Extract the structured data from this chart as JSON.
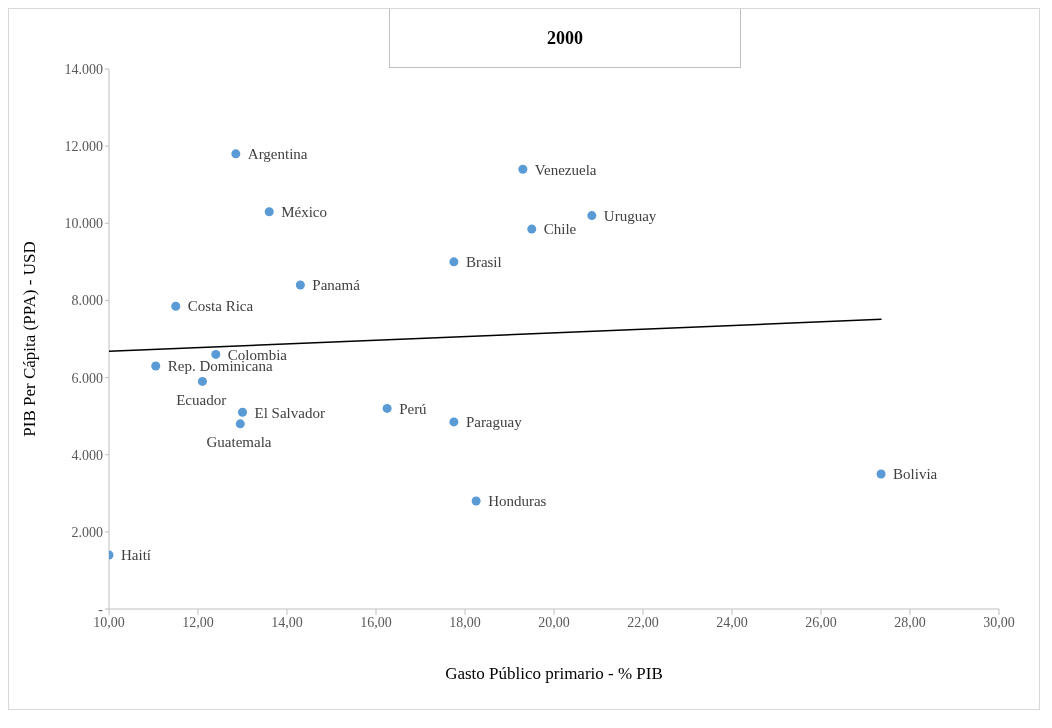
{
  "chart_data": {
    "type": "scatter",
    "title": "2000",
    "xlabel": "Gasto Público primario - % PIB",
    "ylabel": "PIB Per Cápita (PPA) - USD",
    "marker": "circle",
    "grid": false,
    "legend": false,
    "xlim": [
      10,
      30
    ],
    "xticks": [
      {
        "value": 10,
        "label": "10,00"
      },
      {
        "value": 12,
        "label": "12,00"
      },
      {
        "value": 14,
        "label": "14,00"
      },
      {
        "value": 16,
        "label": "16,00"
      },
      {
        "value": 18,
        "label": "18,00"
      },
      {
        "value": 20,
        "label": "20,00"
      },
      {
        "value": 22,
        "label": "22,00"
      },
      {
        "value": 24,
        "label": "24,00"
      },
      {
        "value": 26,
        "label": "26,00"
      },
      {
        "value": 28,
        "label": "28,00"
      },
      {
        "value": 30,
        "label": "30,00"
      }
    ],
    "ylim": [
      0,
      14000
    ],
    "yticks": [
      {
        "value": 0,
        "label": "-"
      },
      {
        "value": 2000,
        "label": "2.000"
      },
      {
        "value": 4000,
        "label": "4.000"
      },
      {
        "value": 6000,
        "label": "6.000"
      },
      {
        "value": 8000,
        "label": "8.000"
      },
      {
        "value": 10000,
        "label": "10.000"
      },
      {
        "value": 12000,
        "label": "12.000"
      },
      {
        "value": 14000,
        "label": "14.000"
      }
    ],
    "series": [
      {
        "color": "#5b9bd5",
        "x": [
          12.85,
          19.3,
          13.6,
          20.85,
          19.5,
          17.75,
          14.3,
          11.5,
          12.4,
          11.05,
          12.1,
          13.0,
          12.95,
          16.25,
          17.75,
          18.25,
          27.35,
          10.0
        ],
        "values": [
          11800,
          11400,
          10300,
          10200,
          9850,
          9000,
          8400,
          7850,
          6600,
          6300,
          5900,
          5100,
          4800,
          5200,
          4850,
          2800,
          3500,
          1400
        ]
      },
      {
        "type": "line",
        "marker": "none",
        "color": "#000000",
        "x": [
          10,
          27.36
        ],
        "values": [
          6680,
          7510
        ]
      }
    ],
    "annotations": [
      {
        "text": "Argentina",
        "x": 12.85,
        "y": 11800
      },
      {
        "text": "Venezuela",
        "x": 19.3,
        "y": 11400
      },
      {
        "text": "México",
        "x": 13.6,
        "y": 10300
      },
      {
        "text": "Uruguay",
        "x": 20.85,
        "y": 10200
      },
      {
        "text": "Chile",
        "x": 19.5,
        "y": 9850
      },
      {
        "text": "Brasil",
        "x": 17.75,
        "y": 9000
      },
      {
        "text": "Panamá",
        "x": 14.3,
        "y": 8400
      },
      {
        "text": "Costa Rica",
        "x": 11.5,
        "y": 7850
      },
      {
        "text": "Colombia",
        "x": 12.4,
        "y": 6600
      },
      {
        "text": "Rep. Dominicana",
        "x": 11.05,
        "y": 6300
      },
      {
        "text": "Ecuador",
        "x": 12.1,
        "y": 5900
      },
      {
        "text": "El Salvador",
        "x": 13.0,
        "y": 5100
      },
      {
        "text": "Guatemala",
        "x": 12.95,
        "y": 4800
      },
      {
        "text": "Perú",
        "x": 16.25,
        "y": 5200
      },
      {
        "text": "Paraguay",
        "x": 17.75,
        "y": 4850
      },
      {
        "text": "Honduras",
        "x": 18.25,
        "y": 2800
      },
      {
        "text": "Bolivia",
        "x": 27.35,
        "y": 3500
      },
      {
        "text": "Haití",
        "x": 10.0,
        "y": 1400
      }
    ]
  }
}
